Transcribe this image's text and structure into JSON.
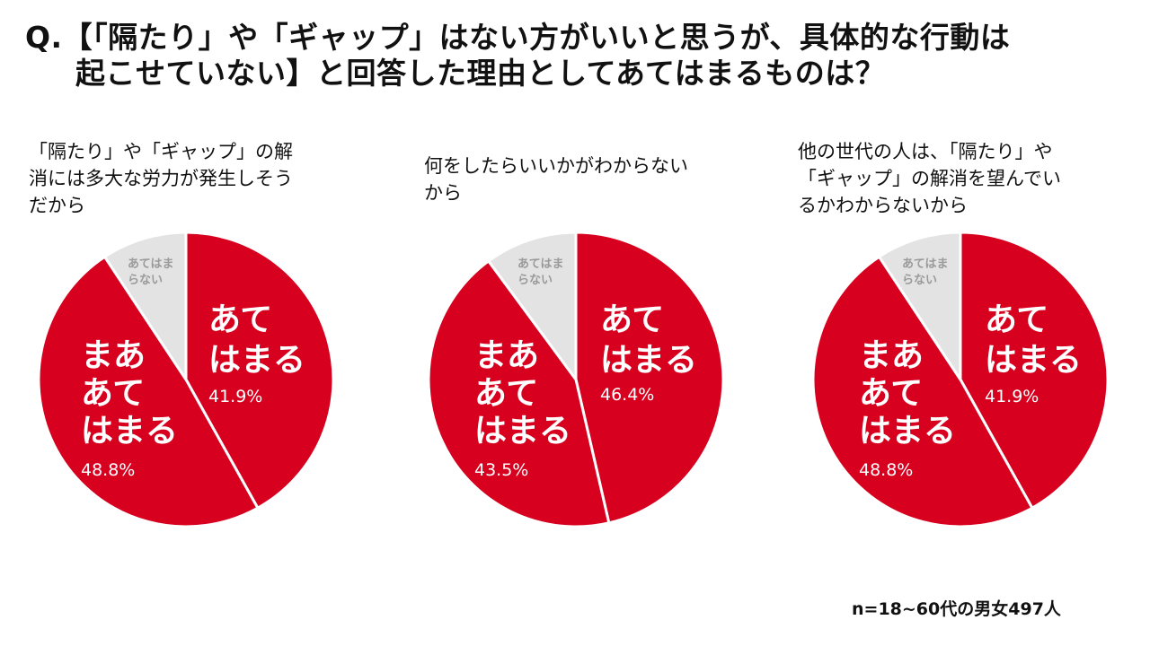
{
  "title": {
    "line1": "Q.【「隔たり」や「ギャップ」はない方がいいと思うが、具体的な行動は",
    "line2": "起こせていない】と回答した理由としてあてはまるものは？"
  },
  "colors": {
    "accent": "#D7001E",
    "gray": "#E3E3E3",
    "separator": "#ffffff"
  },
  "footnote": "n=18~60代の男女497人",
  "chart_data": [
    {
      "type": "pie",
      "title": "「隔たり」や「ギャップ」の解消には多大な労力が発生しそうだから",
      "title_lines": [
        "「隔たり」や「ギャップ」の解",
        "消には多大な労力が発生しそう",
        "だから"
      ],
      "slices": [
        {
          "label_lines": [
            "あて",
            "はまる"
          ],
          "value": 41.9,
          "value_label": "41.9%",
          "color": "#D7001E"
        },
        {
          "label_lines": [
            "まあ",
            "あて",
            "はまる"
          ],
          "value": 48.8,
          "value_label": "48.8%",
          "color": "#D7001E"
        },
        {
          "label_lines": [
            "あてはま",
            "らない"
          ],
          "value": 9.3,
          "color": "#E3E3E3"
        }
      ]
    },
    {
      "type": "pie",
      "title": "何をしたらいいかがわからないから",
      "title_lines": [
        "何をしたらいいかがわからない",
        "から"
      ],
      "slices": [
        {
          "label_lines": [
            "あて",
            "はまる"
          ],
          "value": 46.4,
          "value_label": "46.4%",
          "color": "#D7001E"
        },
        {
          "label_lines": [
            "まあ",
            "あて",
            "はまる"
          ],
          "value": 43.5,
          "value_label": "43.5%",
          "color": "#D7001E"
        },
        {
          "label_lines": [
            "あてはま",
            "らない"
          ],
          "value": 10.1,
          "color": "#E3E3E3"
        }
      ]
    },
    {
      "type": "pie",
      "title": "他の世代の人は、「隔たり」や「ギャップ」の解消を望んでいるかわからないから",
      "title_lines": [
        "他の世代の人は、「隔たり」や",
        "「ギャップ」の解消を望んでい",
        "るかわからないから"
      ],
      "slices": [
        {
          "label_lines": [
            "あて",
            "はまる"
          ],
          "value": 41.9,
          "value_label": "41.9%",
          "color": "#D7001E"
        },
        {
          "label_lines": [
            "まあ",
            "あて",
            "はまる"
          ],
          "value": 48.8,
          "value_label": "48.8%",
          "color": "#D7001E"
        },
        {
          "label_lines": [
            "あてはま",
            "らない"
          ],
          "value": 9.3,
          "color": "#E3E3E3"
        }
      ]
    }
  ]
}
